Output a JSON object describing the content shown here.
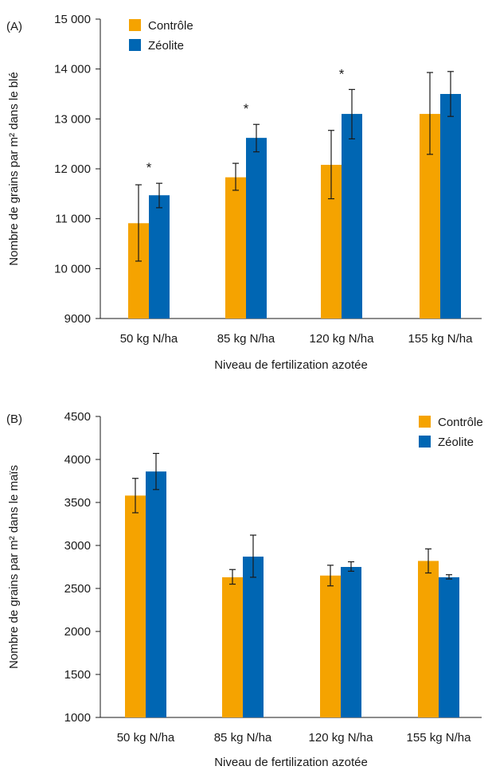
{
  "chart_data": [
    {
      "type": "bar",
      "panel_label": "(A)",
      "categories": [
        "50 kg N/ha",
        "85 kg N/ha",
        "120 kg N/ha",
        "155 kg N/ha"
      ],
      "series": [
        {
          "name": "Contrôle",
          "color": "#f5a300",
          "values": [
            10910,
            11830,
            12080,
            13100
          ],
          "error_low": [
            10150,
            11570,
            11400,
            12290
          ],
          "error_high": [
            11680,
            12110,
            12770,
            13930
          ]
        },
        {
          "name": "Zéolite",
          "color": "#0066b3",
          "values": [
            11470,
            12620,
            13100,
            13500
          ],
          "error_low": [
            11220,
            12340,
            12600,
            13050
          ],
          "error_high": [
            11710,
            12890,
            13590,
            13950
          ]
        }
      ],
      "significance": [
        "*",
        "*",
        "*",
        ""
      ],
      "ylim": [
        9000,
        15000
      ],
      "yticks": [
        9000,
        10000,
        11000,
        12000,
        13000,
        14000,
        15000
      ],
      "ytick_labels": [
        "9000",
        "10 000",
        "11 000",
        "12 000",
        "13 000",
        "14 000",
        "15 000"
      ],
      "xlabel": "Niveau de fertilization azotée",
      "ylabel": "Nombre de grains par m² dans le blé",
      "legend_position": "top-left",
      "grid": false
    },
    {
      "type": "bar",
      "panel_label": "(B)",
      "categories": [
        "50 kg N/ha",
        "85 kg N/ha",
        "120 kg N/ha",
        "155 kg N/ha"
      ],
      "series": [
        {
          "name": "Contrôle",
          "color": "#f5a300",
          "values": [
            3580,
            2630,
            2650,
            2820
          ],
          "error_low": [
            3380,
            2550,
            2530,
            2680
          ],
          "error_high": [
            3780,
            2720,
            2770,
            2960
          ]
        },
        {
          "name": "Zéolite",
          "color": "#0066b3",
          "values": [
            3860,
            2870,
            2750,
            2630
          ],
          "error_low": [
            3650,
            2630,
            2700,
            2610
          ],
          "error_high": [
            4070,
            3120,
            2810,
            2660
          ]
        }
      ],
      "ylim": [
        1000,
        4500
      ],
      "yticks": [
        1000,
        1500,
        2000,
        2500,
        3000,
        3500,
        4000,
        4500
      ],
      "ytick_labels": [
        "1000",
        "1500",
        "2000",
        "2500",
        "3000",
        "3500",
        "4000",
        "4500"
      ],
      "xlabel": "Niveau de fertilization azotée",
      "ylabel": "Nombre de grains par m² dans le maïs",
      "legend_position": "top-right",
      "grid": false
    }
  ]
}
